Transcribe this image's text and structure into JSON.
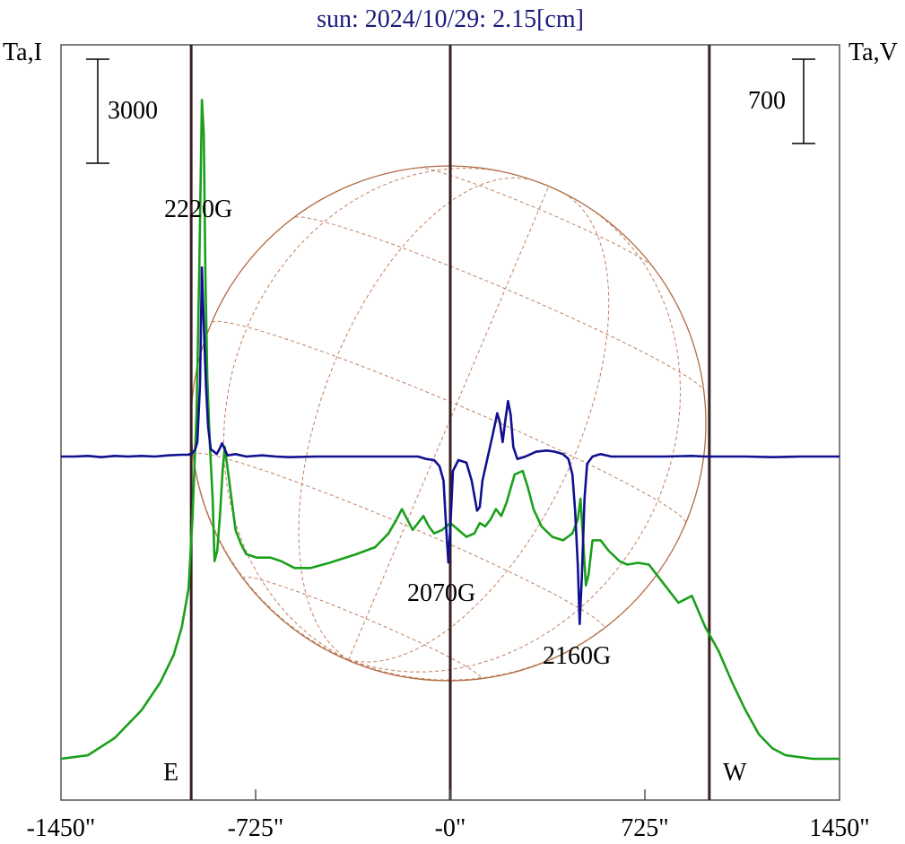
{
  "chart_data": {
    "type": "line",
    "title": "sun: 2024/10/29: 2.15[cm]",
    "y_left_label": "Ta,I",
    "y_right_label": "Ta,V",
    "x_tick_labels": [
      "-1450\"",
      "-725\"",
      "-0\"",
      "725\"",
      "1450\""
    ],
    "x_ticks": [
      -1450,
      -725,
      0,
      725,
      1450
    ],
    "xlim": [
      -1450,
      1450
    ],
    "scale_bar_left": {
      "label": "3000",
      "value": 3000
    },
    "scale_bar_right": {
      "label": "700",
      "value": 700
    },
    "solar_limbs": {
      "east_label": "E",
      "west_label": "W",
      "east_x": -965,
      "west_x": 965
    },
    "center_line_x": 0,
    "annotations": [
      {
        "text": "2220G",
        "x": -925
      },
      {
        "text": "2070G",
        "x": -10
      },
      {
        "text": "2160G",
        "x": 490
      }
    ],
    "series": [
      {
        "color": "#1aa01a",
        "units": "I scale",
        "points": [
          [
            -1450,
            0
          ],
          [
            -1350,
            100
          ],
          [
            -1250,
            600
          ],
          [
            -1150,
            1400
          ],
          [
            -1080,
            2200
          ],
          [
            -1030,
            3000
          ],
          [
            -1000,
            3800
          ],
          [
            -975,
            4900
          ],
          [
            -960,
            7000
          ],
          [
            -945,
            10000
          ],
          [
            -935,
            14000
          ],
          [
            -925,
            19000
          ],
          [
            -918,
            18000
          ],
          [
            -912,
            14000
          ],
          [
            -905,
            11000
          ],
          [
            -895,
            9000
          ],
          [
            -885,
            7500
          ],
          [
            -878,
            5700
          ],
          [
            -868,
            6000
          ],
          [
            -858,
            7000
          ],
          [
            -848,
            8300
          ],
          [
            -840,
            9000
          ],
          [
            -830,
            8400
          ],
          [
            -815,
            7500
          ],
          [
            -800,
            6600
          ],
          [
            -780,
            6200
          ],
          [
            -760,
            5900
          ],
          [
            -720,
            5800
          ],
          [
            -670,
            5800
          ],
          [
            -630,
            5700
          ],
          [
            -580,
            5500
          ],
          [
            -520,
            5500
          ],
          [
            -450,
            5650
          ],
          [
            -350,
            5900
          ],
          [
            -280,
            6100
          ],
          [
            -230,
            6500
          ],
          [
            -200,
            6900
          ],
          [
            -180,
            7200
          ],
          [
            -160,
            6900
          ],
          [
            -140,
            6600
          ],
          [
            -120,
            6800
          ],
          [
            -100,
            7000
          ],
          [
            -80,
            6700
          ],
          [
            -60,
            6500
          ],
          [
            -30,
            6600
          ],
          [
            0,
            6800
          ],
          [
            30,
            6600
          ],
          [
            60,
            6400
          ],
          [
            90,
            6500
          ],
          [
            110,
            6800
          ],
          [
            130,
            6700
          ],
          [
            150,
            6900
          ],
          [
            170,
            7200
          ],
          [
            190,
            7000
          ],
          [
            210,
            7400
          ],
          [
            240,
            8200
          ],
          [
            270,
            8300
          ],
          [
            290,
            7800
          ],
          [
            310,
            7200
          ],
          [
            340,
            6700
          ],
          [
            380,
            6400
          ],
          [
            420,
            6300
          ],
          [
            455,
            6500
          ],
          [
            475,
            6900
          ],
          [
            485,
            7500
          ],
          [
            495,
            6300
          ],
          [
            505,
            5000
          ],
          [
            515,
            5300
          ],
          [
            530,
            6300
          ],
          [
            560,
            6300
          ],
          [
            590,
            6000
          ],
          [
            630,
            5700
          ],
          [
            660,
            5600
          ],
          [
            700,
            5650
          ],
          [
            740,
            5600
          ],
          [
            800,
            5000
          ],
          [
            850,
            4500
          ],
          [
            900,
            4700
          ],
          [
            950,
            3800
          ],
          [
            1000,
            3100
          ],
          [
            1050,
            2200
          ],
          [
            1100,
            1400
          ],
          [
            1150,
            700
          ],
          [
            1200,
            300
          ],
          [
            1250,
            100
          ],
          [
            1350,
            0
          ],
          [
            1450,
            0
          ]
        ]
      },
      {
        "color": "#101090",
        "units": "V scale",
        "points": [
          [
            -1450,
            0
          ],
          [
            -1400,
            0
          ],
          [
            -1350,
            5
          ],
          [
            -1300,
            -5
          ],
          [
            -1250,
            5
          ],
          [
            -1200,
            0
          ],
          [
            -1150,
            5
          ],
          [
            -1100,
            0
          ],
          [
            -1050,
            10
          ],
          [
            -1000,
            15
          ],
          [
            -975,
            15
          ],
          [
            -960,
            30
          ],
          [
            -950,
            60
          ],
          [
            -942,
            120
          ],
          [
            -932,
            600
          ],
          [
            -925,
            1570
          ],
          [
            -918,
            1100
          ],
          [
            -910,
            600
          ],
          [
            -902,
            250
          ],
          [
            -892,
            60
          ],
          [
            -880,
            40
          ],
          [
            -870,
            20
          ],
          [
            -860,
            60
          ],
          [
            -850,
            110
          ],
          [
            -840,
            60
          ],
          [
            -830,
            10
          ],
          [
            -800,
            20
          ],
          [
            -760,
            0
          ],
          [
            -700,
            10
          ],
          [
            -650,
            0
          ],
          [
            -600,
            -5
          ],
          [
            -500,
            0
          ],
          [
            -400,
            0
          ],
          [
            -300,
            0
          ],
          [
            -200,
            0
          ],
          [
            -120,
            0
          ],
          [
            -90,
            -20
          ],
          [
            -60,
            -30
          ],
          [
            -40,
            -80
          ],
          [
            -25,
            -200
          ],
          [
            -15,
            -600
          ],
          [
            -7,
            -880
          ],
          [
            0,
            -600
          ],
          [
            10,
            -120
          ],
          [
            30,
            -30
          ],
          [
            60,
            -50
          ],
          [
            80,
            -200
          ],
          [
            100,
            -450
          ],
          [
            110,
            -420
          ],
          [
            120,
            -200
          ],
          [
            140,
            0
          ],
          [
            160,
            200
          ],
          [
            175,
            360
          ],
          [
            185,
            280
          ],
          [
            195,
            120
          ],
          [
            205,
            300
          ],
          [
            215,
            460
          ],
          [
            225,
            350
          ],
          [
            235,
            80
          ],
          [
            250,
            -20
          ],
          [
            280,
            0
          ],
          [
            320,
            40
          ],
          [
            360,
            50
          ],
          [
            390,
            40
          ],
          [
            420,
            20
          ],
          [
            440,
            -20
          ],
          [
            455,
            -150
          ],
          [
            465,
            -450
          ],
          [
            475,
            -900
          ],
          [
            482,
            -1390
          ],
          [
            490,
            -1000
          ],
          [
            500,
            -350
          ],
          [
            510,
            -60
          ],
          [
            530,
            0
          ],
          [
            560,
            20
          ],
          [
            600,
            0
          ],
          [
            700,
            0
          ],
          [
            800,
            0
          ],
          [
            900,
            5
          ],
          [
            950,
            0
          ],
          [
            1000,
            0
          ],
          [
            1100,
            0
          ],
          [
            1200,
            -5
          ],
          [
            1300,
            0
          ],
          [
            1400,
            0
          ],
          [
            1450,
            0
          ]
        ]
      }
    ]
  }
}
